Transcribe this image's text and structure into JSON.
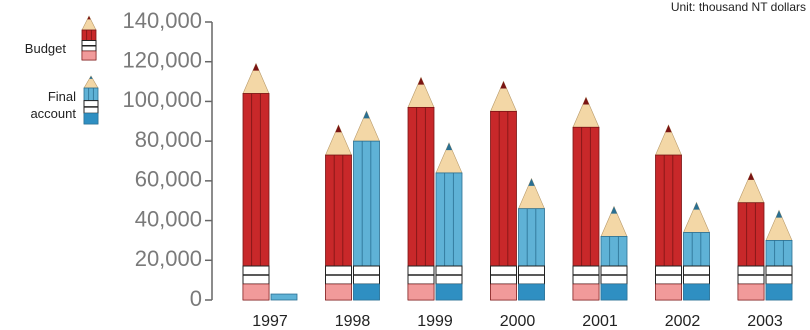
{
  "chart_data": {
    "type": "bar",
    "subtitle": "Unit: thousand NT dollars",
    "categories": [
      "1997",
      "1998",
      "1999",
      "2000",
      "2001",
      "2002",
      "2003"
    ],
    "series": [
      {
        "name": "Budget",
        "color": "#c8282a",
        "values": [
          104000,
          73000,
          97000,
          95000,
          87000,
          73000,
          49000
        ]
      },
      {
        "name": "Final account",
        "color": "#5fb2d6",
        "values": [
          3000,
          80000,
          64000,
          46000,
          32000,
          34000,
          30000
        ]
      }
    ],
    "ylim": [
      0,
      140000
    ],
    "yticks": [
      0,
      {
        "value": 20000,
        "label": "20,000"
      },
      {
        "value": 40000,
        "label": "40,000"
      },
      {
        "value": 60000,
        "label": "60,000"
      },
      {
        "value": 80000,
        "label": "80,000"
      },
      {
        "value": 100000,
        "label": "100,000"
      },
      {
        "value": 120000,
        "label": "120,000"
      },
      {
        "value": 140000,
        "label": "140,000"
      }
    ],
    "grid": false
  }
}
